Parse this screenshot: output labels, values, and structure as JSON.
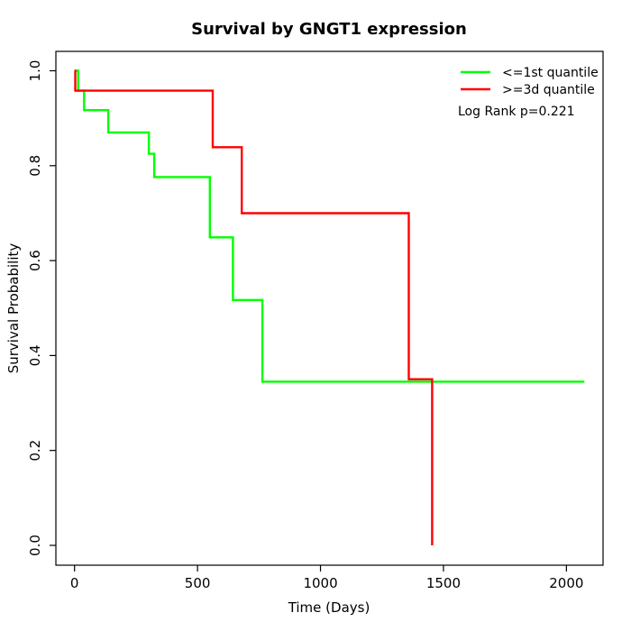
{
  "chart_data": {
    "type": "line",
    "subtype": "kaplan-meier-step",
    "title": "Survival by GNGT1 expression",
    "xlabel": "Time (Days)",
    "ylabel": "Survival Probability",
    "x_axis": {
      "min": 0,
      "max": 2000,
      "ticks": [
        0,
        500,
        1000,
        1500,
        2000
      ]
    },
    "y_axis": {
      "min": 0.0,
      "max": 1.0,
      "tick_labels": [
        "0.0",
        "0.2",
        "0.4",
        "0.6",
        "0.8",
        "1.0"
      ],
      "tick_values": [
        0.0,
        0.2,
        0.4,
        0.6,
        0.8,
        1.0
      ]
    },
    "grid": false,
    "legend": {
      "position": "top-right",
      "entries": [
        {
          "label": "<=1st quantile",
          "color": "#00ff00"
        },
        {
          "label": ">=3d quantile",
          "color": "#ff0000"
        }
      ]
    },
    "annotation": "Log Rank p=0.221",
    "series": [
      {
        "name": "<=1st quantile",
        "color": "#00ff00",
        "steps": [
          [
            0,
            1.0
          ],
          [
            15,
            0.958
          ],
          [
            39,
            0.917
          ],
          [
            137,
            0.87
          ],
          [
            302,
            0.825
          ],
          [
            324,
            0.776
          ],
          [
            550,
            0.649
          ],
          [
            644,
            0.517
          ],
          [
            764,
            0.345
          ],
          [
            2073,
            0.345
          ]
        ]
      },
      {
        "name": ">=3d quantile",
        "color": "#ff0000",
        "steps": [
          [
            0,
            1.0
          ],
          [
            3,
            0.958
          ],
          [
            562,
            0.839
          ],
          [
            680,
            0.7
          ],
          [
            1359,
            0.35
          ],
          [
            1454,
            0.0
          ]
        ]
      }
    ]
  }
}
